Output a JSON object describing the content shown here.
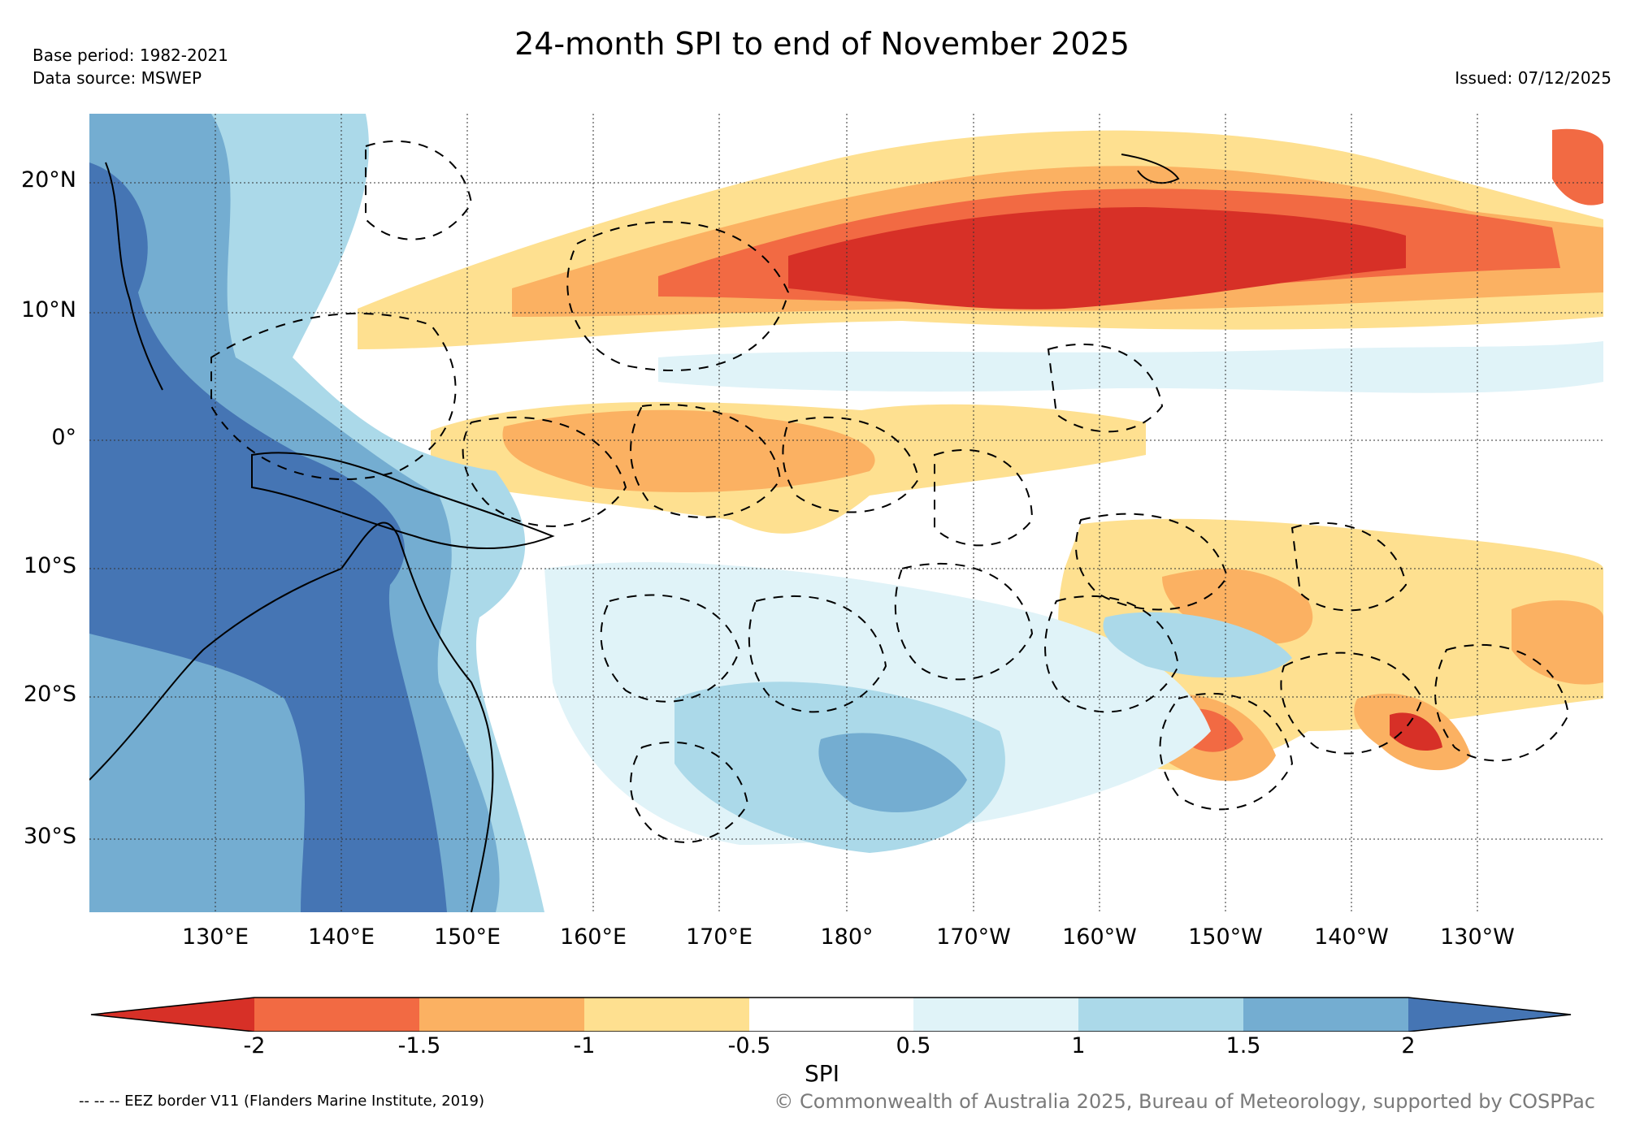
{
  "header": {
    "title": "24-month SPI to end of November 2025",
    "base_period": "Base period: 1982-2021",
    "data_source": "Data source: MSWEP",
    "issued": "Issued: 07/12/2025"
  },
  "axes": {
    "lat_labels": [
      "20°N",
      "10°N",
      "0°",
      "10°S",
      "20°S",
      "30°S"
    ],
    "lon_labels": [
      "130°E",
      "140°E",
      "150°E",
      "160°E",
      "170°E",
      "180°",
      "170°W",
      "160°W",
      "150°W",
      "140°W",
      "130°W"
    ]
  },
  "colorbar": {
    "label": "SPI",
    "ticks": [
      "-2",
      "-1.5",
      "-1",
      "-0.5",
      "0.5",
      "1",
      "1.5",
      "2"
    ],
    "colors": [
      "#d73027",
      "#f26a43",
      "#fbb162",
      "#fee090",
      "#ffffff",
      "#e0f3f8",
      "#abd9e9",
      "#74add1",
      "#4575b4"
    ]
  },
  "footer": {
    "eez_note": "-- -- -- EEZ border V11 (Flanders Marine Institute, 2019)",
    "copyright": "© Commonwealth of Australia 2025, Bureau of Meteorology, supported by COSPPac"
  }
}
